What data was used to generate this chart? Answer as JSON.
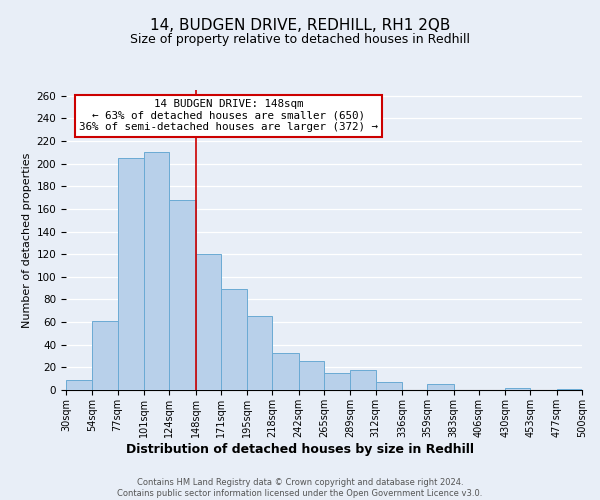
{
  "title": "14, BUDGEN DRIVE, REDHILL, RH1 2QB",
  "subtitle": "Size of property relative to detached houses in Redhill",
  "xlabel": "Distribution of detached houses by size in Redhill",
  "ylabel": "Number of detached properties",
  "bin_edges": [
    30,
    54,
    77,
    101,
    124,
    148,
    171,
    195,
    218,
    242,
    265,
    289,
    312,
    336,
    359,
    383,
    406,
    430,
    453,
    477,
    500
  ],
  "counts": [
    9,
    61,
    205,
    210,
    168,
    120,
    89,
    65,
    33,
    26,
    15,
    18,
    7,
    0,
    5,
    0,
    0,
    2,
    0,
    1
  ],
  "bar_color": "#b8d0ea",
  "bar_edge_color": "#6aaad4",
  "reference_line_x": 148,
  "reference_line_color": "#cc0000",
  "annotation_title": "14 BUDGEN DRIVE: 148sqm",
  "annotation_line1": "← 63% of detached houses are smaller (650)",
  "annotation_line2": "36% of semi-detached houses are larger (372) →",
  "annotation_box_color": "#ffffff",
  "annotation_box_edge_color": "#cc0000",
  "ylim": [
    0,
    265
  ],
  "yticks": [
    0,
    20,
    40,
    60,
    80,
    100,
    120,
    140,
    160,
    180,
    200,
    220,
    240,
    260
  ],
  "tick_labels": [
    "30sqm",
    "54sqm",
    "77sqm",
    "101sqm",
    "124sqm",
    "148sqm",
    "171sqm",
    "195sqm",
    "218sqm",
    "242sqm",
    "265sqm",
    "289sqm",
    "312sqm",
    "336sqm",
    "359sqm",
    "383sqm",
    "406sqm",
    "430sqm",
    "453sqm",
    "477sqm",
    "500sqm"
  ],
  "footer_line1": "Contains HM Land Registry data © Crown copyright and database right 2024.",
  "footer_line2": "Contains public sector information licensed under the Open Government Licence v3.0.",
  "background_color": "#e8eef7",
  "plot_background_color": "#e8eef7",
  "grid_color": "#ffffff",
  "title_fontsize": 11,
  "subtitle_fontsize": 9,
  "xlabel_fontsize": 9,
  "ylabel_fontsize": 8,
  "tick_fontsize": 7,
  "footer_fontsize": 6
}
